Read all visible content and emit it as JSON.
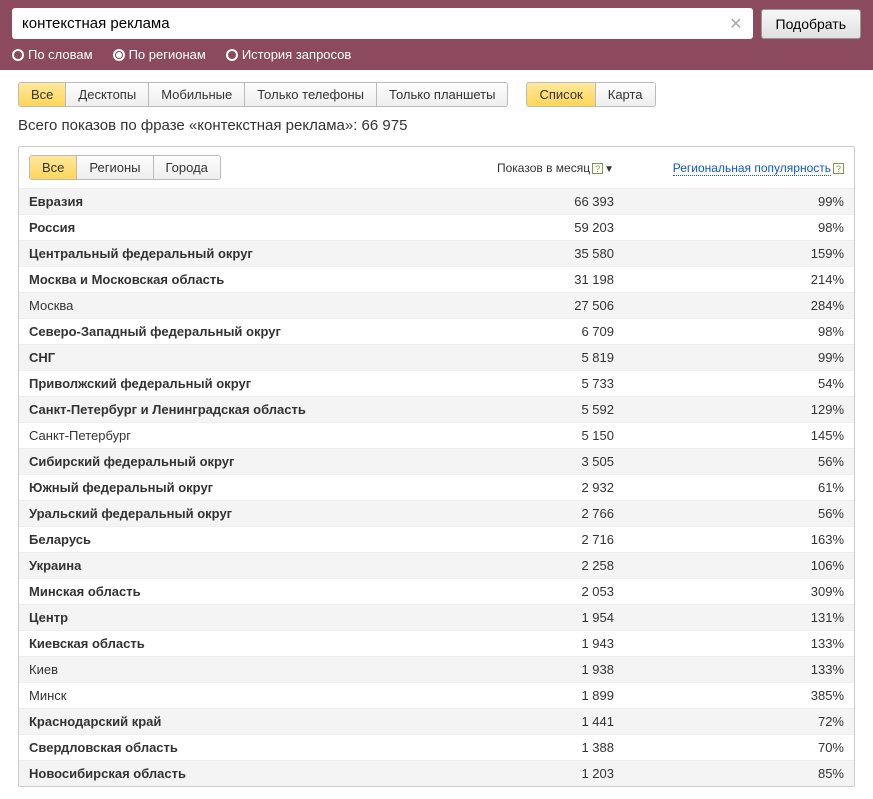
{
  "search": {
    "value": "контекстная реклама",
    "submit_label": "Подобрать"
  },
  "radios": [
    {
      "label": "По словам",
      "checked": false
    },
    {
      "label": "По регионам",
      "checked": true
    },
    {
      "label": "История запросов",
      "checked": false
    }
  ],
  "device_tabs": [
    {
      "label": "Все",
      "active": true
    },
    {
      "label": "Десктопы",
      "active": false
    },
    {
      "label": "Мобильные",
      "active": false
    },
    {
      "label": "Только телефоны",
      "active": false
    },
    {
      "label": "Только планшеты",
      "active": false
    }
  ],
  "view_tabs": [
    {
      "label": "Список",
      "active": true
    },
    {
      "label": "Карта",
      "active": false
    }
  ],
  "summary": "Всего показов по фразе «контекстная реклама»: 66 975",
  "type_tabs": [
    {
      "label": "Все",
      "active": true
    },
    {
      "label": "Регионы",
      "active": false
    },
    {
      "label": "Города",
      "active": false
    }
  ],
  "columns": {
    "impressions": "Показов в месяц",
    "popularity": "Региональная популярность"
  },
  "rows": [
    {
      "region": "Евразия",
      "impressions": "66 393",
      "popularity": "99%",
      "bold": true
    },
    {
      "region": "Россия",
      "impressions": "59 203",
      "popularity": "98%",
      "bold": true
    },
    {
      "region": "Центральный федеральный округ",
      "impressions": "35 580",
      "popularity": "159%",
      "bold": true
    },
    {
      "region": "Москва и Московская область",
      "impressions": "31 198",
      "popularity": "214%",
      "bold": true
    },
    {
      "region": "Москва",
      "impressions": "27 506",
      "popularity": "284%",
      "bold": false
    },
    {
      "region": "Северо-Западный федеральный округ",
      "impressions": "6 709",
      "popularity": "98%",
      "bold": true
    },
    {
      "region": "СНГ",
      "impressions": "5 819",
      "popularity": "99%",
      "bold": true
    },
    {
      "region": "Приволжский федеральный округ",
      "impressions": "5 733",
      "popularity": "54%",
      "bold": true
    },
    {
      "region": "Санкт-Петербург и Ленинградская область",
      "impressions": "5 592",
      "popularity": "129%",
      "bold": true
    },
    {
      "region": "Санкт-Петербург",
      "impressions": "5 150",
      "popularity": "145%",
      "bold": false
    },
    {
      "region": "Сибирский федеральный округ",
      "impressions": "3 505",
      "popularity": "56%",
      "bold": true
    },
    {
      "region": "Южный федеральный округ",
      "impressions": "2 932",
      "popularity": "61%",
      "bold": true
    },
    {
      "region": "Уральский федеральный округ",
      "impressions": "2 766",
      "popularity": "56%",
      "bold": true
    },
    {
      "region": "Беларусь",
      "impressions": "2 716",
      "popularity": "163%",
      "bold": true
    },
    {
      "region": "Украина",
      "impressions": "2 258",
      "popularity": "106%",
      "bold": true
    },
    {
      "region": "Минская область",
      "impressions": "2 053",
      "popularity": "309%",
      "bold": true
    },
    {
      "region": "Центр",
      "impressions": "1 954",
      "popularity": "131%",
      "bold": true
    },
    {
      "region": "Киевская область",
      "impressions": "1 943",
      "popularity": "133%",
      "bold": true
    },
    {
      "region": "Киев",
      "impressions": "1 938",
      "popularity": "133%",
      "bold": false
    },
    {
      "region": "Минск",
      "impressions": "1 899",
      "popularity": "385%",
      "bold": false
    },
    {
      "region": "Краснодарский край",
      "impressions": "1 441",
      "popularity": "72%",
      "bold": true
    },
    {
      "region": "Свердловская область",
      "impressions": "1 388",
      "popularity": "70%",
      "bold": true
    },
    {
      "region": "Новосибирская область",
      "impressions": "1 203",
      "popularity": "85%",
      "bold": true
    }
  ]
}
